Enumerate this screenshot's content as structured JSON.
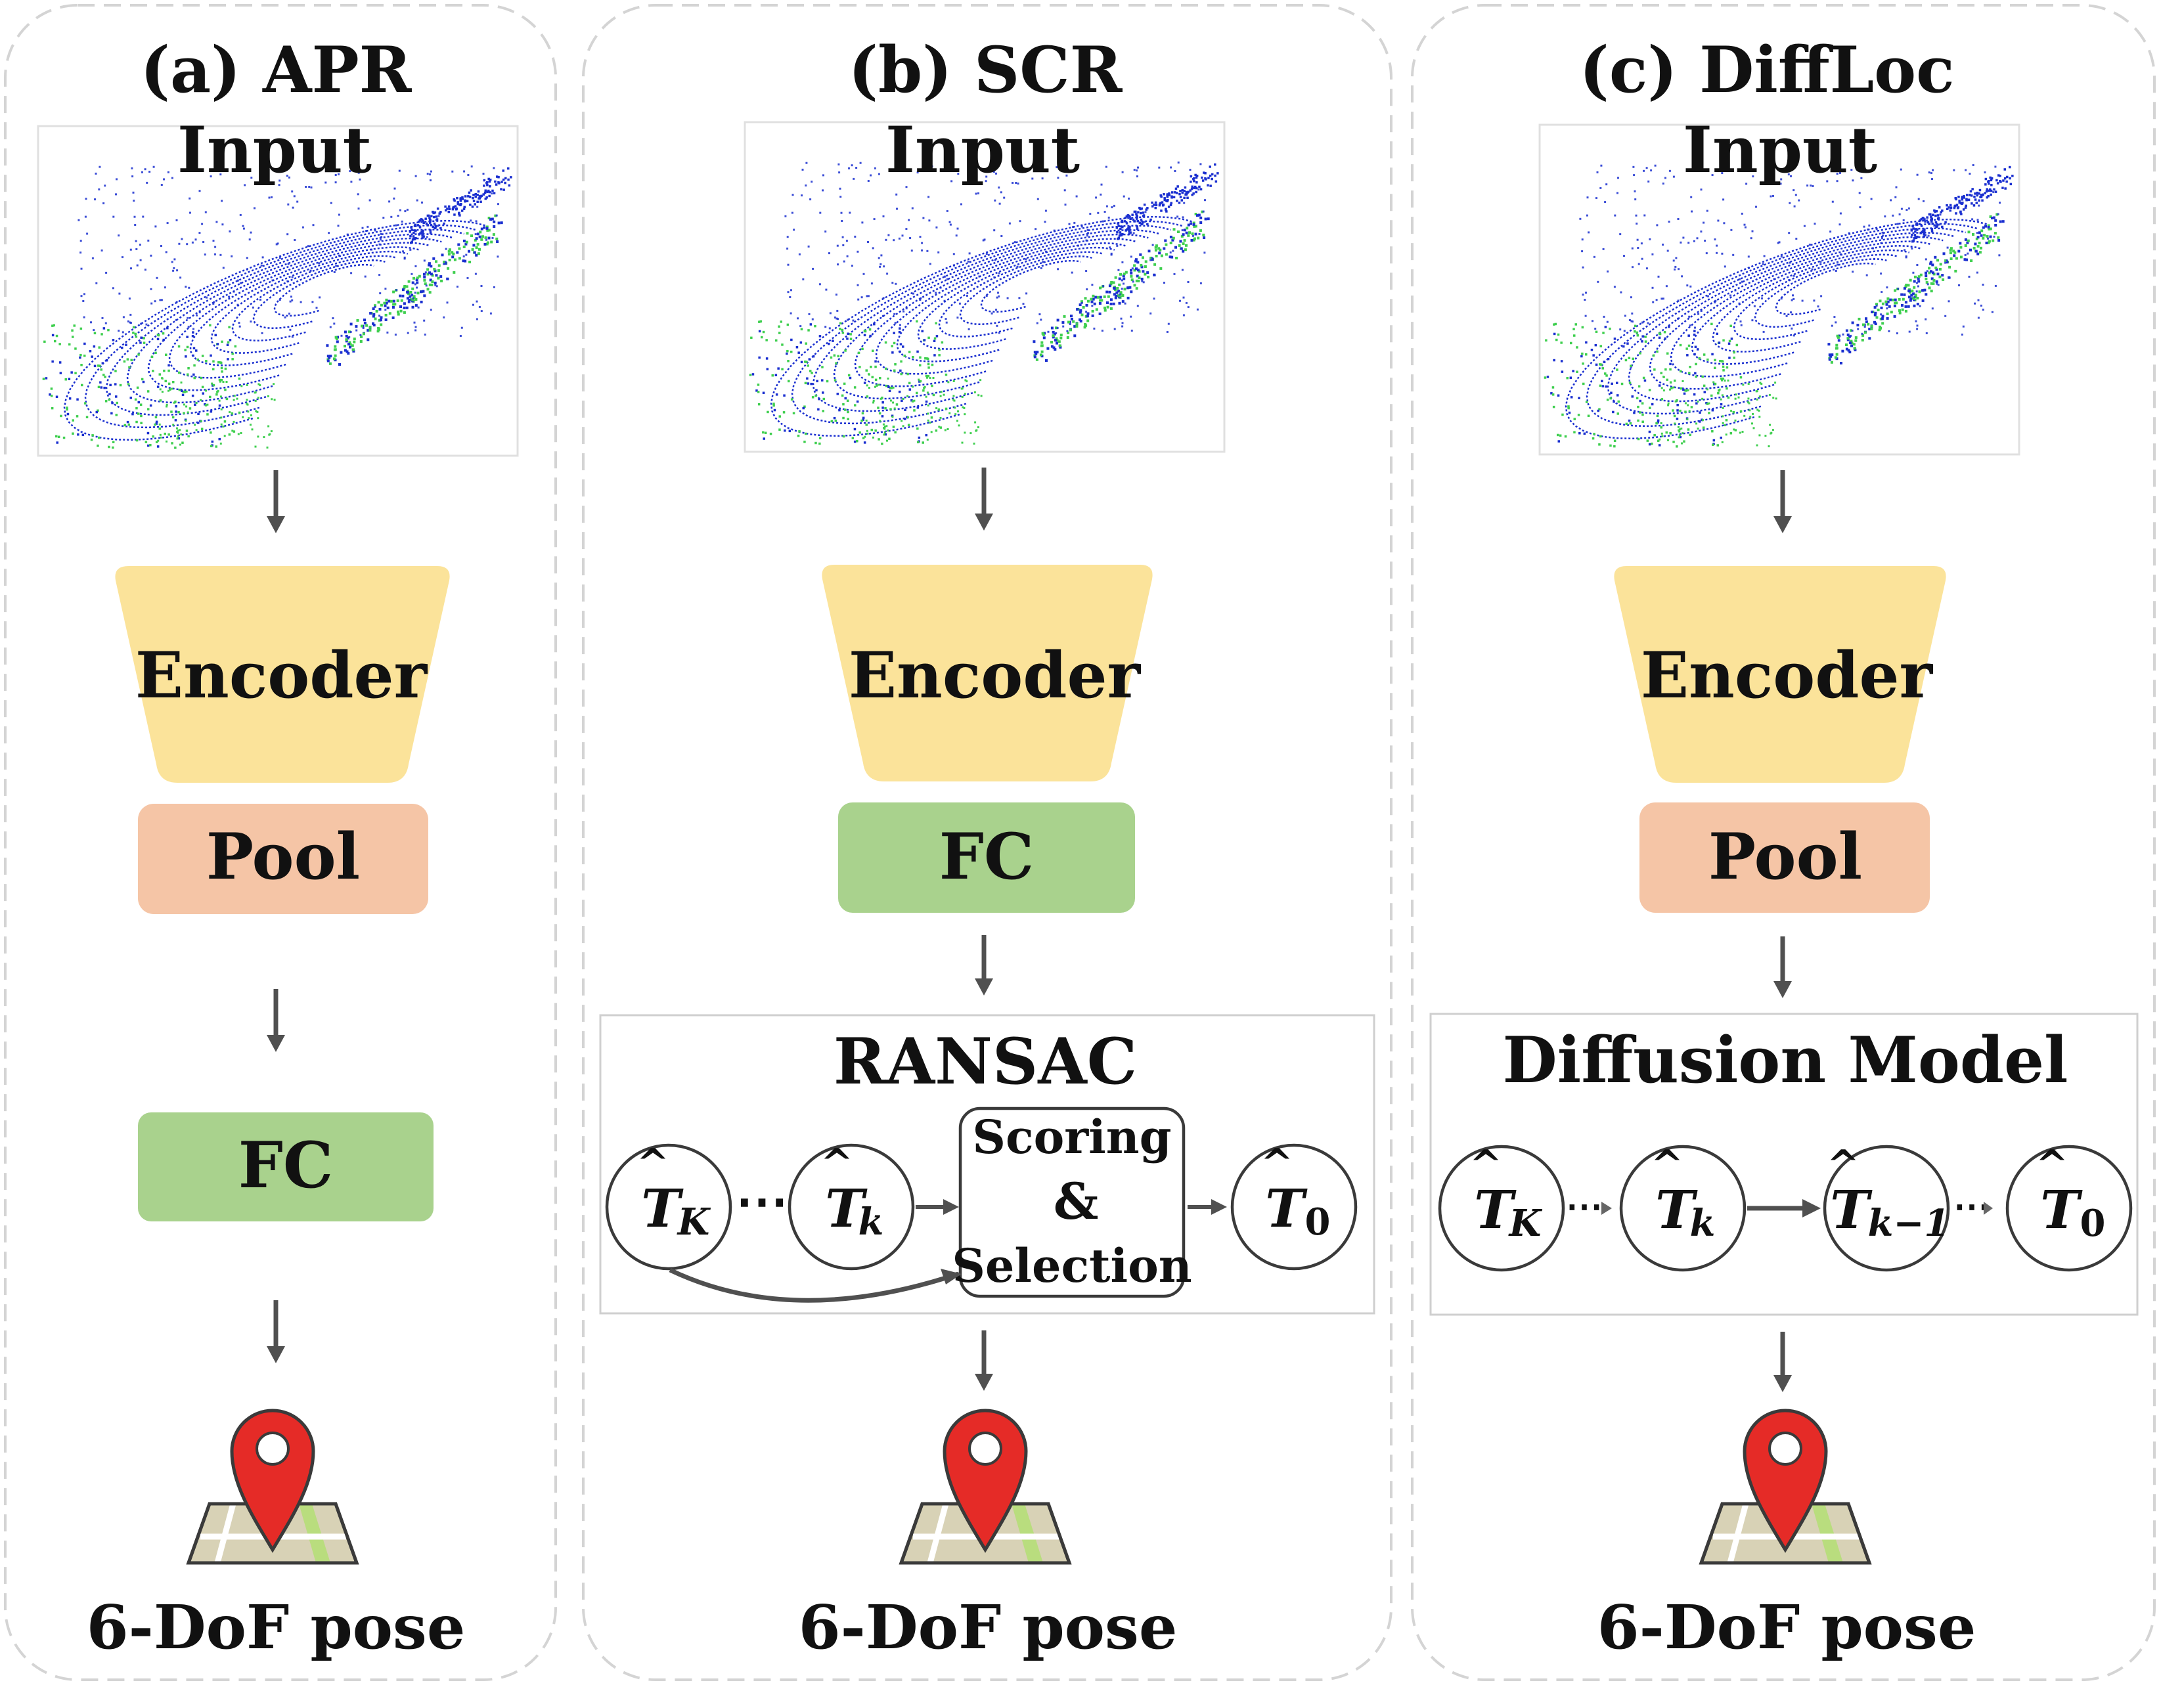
{
  "panels": [
    {
      "id": "apr",
      "title": "(a) APR",
      "input_label": "Input",
      "encoder_label": "Encoder",
      "stage1_label": "Pool",
      "stage2_label": "FC",
      "output_label": "6-DoF pose"
    },
    {
      "id": "scr",
      "title": "(b) SCR",
      "input_label": "Input",
      "encoder_label": "Encoder",
      "stage1_label": "FC",
      "module_title": "RANSAC",
      "nodes": [
        {
          "hat": "T",
          "sub": "K"
        },
        {
          "hat": "T",
          "sub": "k"
        },
        {
          "hat": "T",
          "sub": "0"
        }
      ],
      "scoring_lines": [
        "Scoring",
        "&",
        "Selection"
      ],
      "ellipsis": "⋯",
      "output_label": "6-DoF pose"
    },
    {
      "id": "diffloc",
      "title": "(c) DiffLoc",
      "input_label": "Input",
      "encoder_label": "Encoder",
      "stage1_label": "Pool",
      "module_title": "Diffusion Model",
      "nodes": [
        {
          "hat": "T",
          "sub": "K"
        },
        {
          "hat": "T",
          "sub": "k"
        },
        {
          "hat": "T",
          "sub": "k−1"
        },
        {
          "hat": "T",
          "sub": "0"
        }
      ],
      "ellipsis": "⋯",
      "output_label": "6-DoF pose"
    }
  ],
  "colors": {
    "encoder": "#fbe39a",
    "pool": "#f5c5a6",
    "fc": "#a9d28d",
    "pin": "#e52b27",
    "arrow": "#505050",
    "point_cloud_blue": "#1a2fd0",
    "point_cloud_green": "#3fcf4f"
  },
  "icons": [
    "point-cloud-image",
    "map-pin-icon"
  ]
}
